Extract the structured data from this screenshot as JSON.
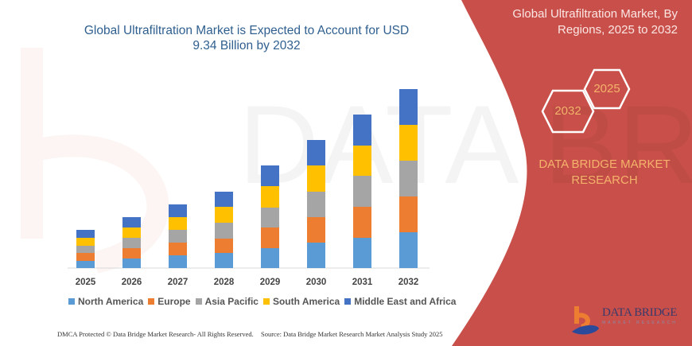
{
  "chart_data": {
    "type": "bar",
    "stacked": true,
    "title": "Global Ultrafiltration Market is Expected to Account for USD 9.34 Billion by 2032",
    "categories": [
      "2025",
      "2026",
      "2027",
      "2028",
      "2029",
      "2030",
      "2031",
      "2032"
    ],
    "series": [
      {
        "name": "North America",
        "color": "#5b9bd5",
        "values": [
          9,
          12,
          16,
          19,
          25,
          32,
          38,
          45
        ]
      },
      {
        "name": "Europe",
        "color": "#ed7d31",
        "values": [
          10,
          13,
          16,
          18,
          26,
          32,
          39,
          45
        ]
      },
      {
        "name": "Asia Pacific",
        "color": "#a5a5a5",
        "values": [
          9,
          13,
          16,
          20,
          25,
          32,
          39,
          45
        ]
      },
      {
        "name": "South America",
        "color": "#ffc000",
        "values": [
          10,
          13,
          16,
          20,
          27,
          33,
          38,
          45
        ]
      },
      {
        "name": "Middle East and Africa",
        "color": "#4472c4",
        "values": [
          10,
          13,
          16,
          19,
          26,
          32,
          39,
          45
        ]
      }
    ],
    "value_note_visible": false,
    "legend_placement": "bottom",
    "grid": false
  },
  "title_lines": [
    "Global Ultrafiltration Market is Expected to Account for USD",
    "9.34 Billion by 2032"
  ],
  "panel": {
    "color": "#c9504a",
    "title_lines": [
      "Global Ultrafiltration Market, By",
      "Regions, 2025 to 2032"
    ],
    "hex_start": "2025",
    "hex_end": "2032",
    "brand_lines": [
      "DATA BRIDGE MARKET",
      "RESEARCH"
    ],
    "logo_text": "DATA BRIDGE",
    "logo_sub": "MARKET RESEARCH"
  },
  "footer": {
    "left": "DMCA Protected © Data Bridge Market Research-  All Rights Reserved.",
    "right": "Source: Data Bridge Market Research  Market Analysis Study 2025"
  }
}
